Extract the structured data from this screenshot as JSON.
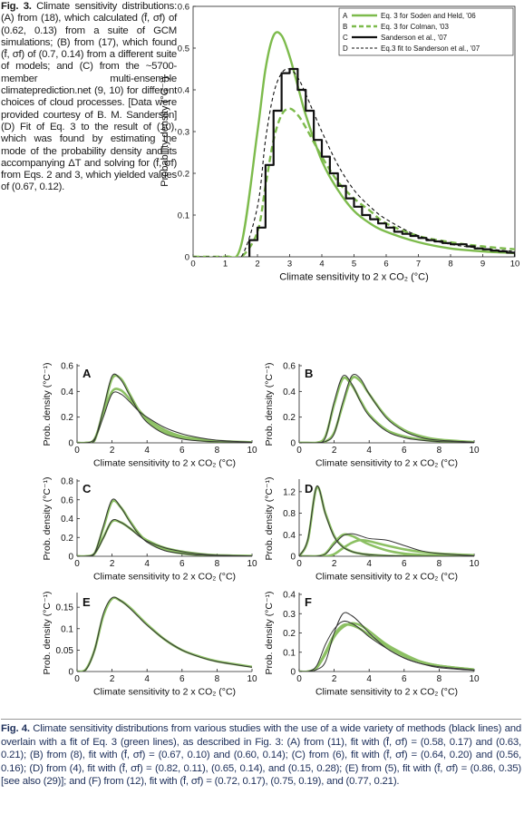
{
  "figure3_caption": {
    "label": "Fig. 3.",
    "text": "Climate sensitivity distributions: (A) from (18), which calculated (f̄, σf) of (0.62, 0.13) from a suite of GCM simulations; (B) from (17), which found (f̄, σf) of (0.7, 0.14) from a different suite of models; and (C) from the ~5700-member multi-ensemble climateprediction.net (9, 10) for different choices of cloud processes. [Data were provided courtesy of B. M. Sanderson] (D) Fit of Eq. 3 to the result of (10), which was found by estimating the mode of the probability density and its accompanying ΔT and solving for (f̄, σf) from Eqs. 2 and 3, which yielded values of (0.67, 0.12)."
  },
  "figure4_caption": {
    "label": "Fig. 4.",
    "text": "Climate sensitivity distributions from various studies with the use of a wide variety of methods (black lines) and overlain with a fit of Eq. 3 (green lines), as described in Fig. 3: (A) from (11), fit with (f̄, σf) = (0.58, 0.17) and (0.63, 0.21); (B) from (8), fit with (f̄, σf) = (0.67, 0.10) and (0.60, 0.14); (C) from (6), fit with (f̄, σf) = (0.64, 0.20) and (0.56, 0.16); (D) from (4), fit with (f̄, σf) = (0.82, 0.11), (0.65, 0.14), and (0.15, 0.28); (E) from (5), fit with (f̄, σf) = (0.86, 0.35) [see also (29)]; and (F) from (12), fit with (f̄, σf) = (0.72, 0.17), (0.75, 0.19), and (0.77, 0.21)."
  },
  "chart_data": [
    {
      "type": "line",
      "xlabel": "Climate sensitivity to 2 x CO₂ (°C)",
      "ylabel": "Probability density (°C⁻¹)",
      "xlim": [
        0,
        10
      ],
      "ylim": [
        0,
        0.6
      ],
      "xticks": [
        0,
        1,
        2,
        3,
        4,
        5,
        6,
        7,
        8,
        9,
        10
      ],
      "yticks": [
        0,
        0.1,
        0.2,
        0.3,
        0.4,
        0.5,
        0.6
      ],
      "legend": "upper right",
      "box": true,
      "x": [
        0,
        1,
        1.5,
        2,
        2.25,
        2.5,
        2.75,
        3,
        3.25,
        3.5,
        4,
        4.5,
        5,
        5.5,
        6,
        7,
        8,
        9,
        10
      ],
      "series": [
        {
          "key": "A",
          "name": "Eq. 3 for Soden and Held, '06",
          "color": "#7dbb4c",
          "width": 2.4,
          "style": "solid",
          "values": [
            0,
            0,
            0.03,
            0.3,
            0.45,
            0.53,
            0.53,
            0.48,
            0.41,
            0.34,
            0.23,
            0.16,
            0.11,
            0.08,
            0.06,
            0.035,
            0.02,
            0.013,
            0.009
          ]
        },
        {
          "key": "B",
          "name": "Eq. 3 for Colman, '03",
          "color": "#7dbb4c",
          "width": 2.4,
          "style": "dashed",
          "values": [
            0,
            0,
            0,
            0.06,
            0.17,
            0.28,
            0.34,
            0.355,
            0.34,
            0.31,
            0.24,
            0.18,
            0.14,
            0.11,
            0.08,
            0.05,
            0.035,
            0.025,
            0.018
          ]
        },
        {
          "key": "C",
          "name": "Sanderson et al., '07",
          "color": "#111111",
          "width": 2.2,
          "style": "solid",
          "step": true,
          "x": [
            1.75,
            2,
            2.25,
            2.5,
            2.75,
            3,
            3.25,
            3.5,
            3.75,
            4,
            4.25,
            4.5,
            4.75,
            5,
            5.25,
            5.5,
            5.75,
            6,
            6.25,
            6.5,
            6.75,
            7,
            7.25,
            7.5,
            7.75,
            8,
            8.25,
            8.5,
            8.75,
            9,
            9.25,
            9.5,
            9.75
          ],
          "values": [
            0.04,
            0.07,
            0.22,
            0.35,
            0.44,
            0.45,
            0.4,
            0.35,
            0.28,
            0.24,
            0.2,
            0.17,
            0.14,
            0.12,
            0.1,
            0.09,
            0.08,
            0.07,
            0.06,
            0.055,
            0.05,
            0.045,
            0.04,
            0.037,
            0.033,
            0.03,
            0.03,
            0.025,
            0.02,
            0.018,
            0.015,
            0.013,
            0.01
          ]
        },
        {
          "key": "D",
          "name": "Eq.3 fit to Sanderson et al., '07",
          "color": "#111111",
          "width": 1.1,
          "style": "dashed",
          "values": [
            0,
            0,
            0,
            0.12,
            0.28,
            0.39,
            0.44,
            0.45,
            0.43,
            0.39,
            0.3,
            0.22,
            0.16,
            0.12,
            0.09,
            0.05,
            0.03,
            0.02,
            0.013
          ]
        }
      ]
    },
    {
      "type": "line",
      "panel": "A",
      "xlabel": "Climate sensitivity to 2 x CO₂ (°C)",
      "ylabel": "Prob. density (°C⁻¹)",
      "xlim": [
        0,
        10
      ],
      "ylim": [
        0,
        0.6
      ],
      "xticks": [
        0,
        2,
        4,
        6,
        8,
        10
      ],
      "yticks": [
        0,
        0.2,
        0.4,
        0.6
      ],
      "x": [
        0,
        0.5,
        1,
        1.5,
        2,
        2.5,
        3,
        3.5,
        4,
        5,
        6,
        7,
        8,
        10
      ],
      "series": [
        {
          "color": "#8cc063",
          "width": 2.6,
          "values": [
            0,
            0,
            0.02,
            0.25,
            0.5,
            0.5,
            0.38,
            0.26,
            0.17,
            0.08,
            0.04,
            0.02,
            0.01,
            0.003
          ]
        },
        {
          "color": "#8cc063",
          "width": 2.6,
          "values": [
            0,
            0,
            0.03,
            0.22,
            0.4,
            0.41,
            0.34,
            0.26,
            0.19,
            0.1,
            0.05,
            0.03,
            0.015,
            0.005
          ]
        },
        {
          "color": "#333333",
          "width": 1,
          "values": [
            0,
            0,
            0.02,
            0.26,
            0.52,
            0.49,
            0.37,
            0.25,
            0.16,
            0.07,
            0.03,
            0.015,
            0.008,
            0.002
          ]
        },
        {
          "color": "#333333",
          "width": 1,
          "values": [
            0,
            0,
            0.03,
            0.2,
            0.38,
            0.38,
            0.32,
            0.25,
            0.2,
            0.12,
            0.07,
            0.04,
            0.02,
            0.005
          ]
        }
      ]
    },
    {
      "type": "line",
      "panel": "B",
      "xlabel": "Climate sensitivity to 2 x CO₂ (°C)",
      "ylabel": "Prob. density (°C⁻¹)",
      "xlim": [
        0,
        10
      ],
      "ylim": [
        0,
        0.6
      ],
      "xticks": [
        0,
        2,
        4,
        6,
        8,
        10
      ],
      "yticks": [
        0,
        0.2,
        0.4,
        0.6
      ],
      "x": [
        0,
        0.5,
        1,
        1.5,
        2,
        2.5,
        3,
        3.5,
        4,
        5,
        6,
        7,
        8,
        10
      ],
      "series": [
        {
          "color": "#8cc063",
          "width": 2.6,
          "values": [
            0,
            0,
            0,
            0.05,
            0.3,
            0.5,
            0.45,
            0.33,
            0.22,
            0.1,
            0.05,
            0.025,
            0.012,
            0.003
          ]
        },
        {
          "color": "#8cc063",
          "width": 2.6,
          "values": [
            0,
            0,
            0,
            0.01,
            0.08,
            0.3,
            0.5,
            0.48,
            0.38,
            0.2,
            0.1,
            0.05,
            0.025,
            0.006
          ]
        },
        {
          "color": "#333333",
          "width": 1,
          "values": [
            0,
            0,
            0,
            0.04,
            0.32,
            0.52,
            0.46,
            0.32,
            0.21,
            0.09,
            0.04,
            0.02,
            0.01,
            0.002
          ]
        },
        {
          "color": "#333333",
          "width": 1,
          "values": [
            0,
            0,
            0,
            0.01,
            0.07,
            0.32,
            0.52,
            0.5,
            0.38,
            0.19,
            0.09,
            0.04,
            0.02,
            0.005
          ]
        }
      ]
    },
    {
      "type": "line",
      "panel": "C",
      "xlabel": "Climate sensitivity to 2 x CO₂ (°C)",
      "ylabel": "Prob. density (°C⁻¹)",
      "xlim": [
        0,
        10
      ],
      "ylim": [
        0,
        0.8
      ],
      "xticks": [
        0,
        2,
        4,
        6,
        8,
        10
      ],
      "yticks": [
        0,
        0.2,
        0.4,
        0.6,
        0.8
      ],
      "x": [
        0,
        0.5,
        1,
        1.5,
        2,
        2.5,
        3,
        3.5,
        4,
        5,
        6,
        7,
        8,
        10
      ],
      "series": [
        {
          "color": "#8cc063",
          "width": 2.6,
          "values": [
            0,
            0,
            0.03,
            0.3,
            0.58,
            0.52,
            0.38,
            0.25,
            0.16,
            0.07,
            0.03,
            0.015,
            0.007,
            0.002
          ]
        },
        {
          "color": "#8cc063",
          "width": 2.6,
          "values": [
            0,
            0,
            0.03,
            0.2,
            0.37,
            0.36,
            0.3,
            0.23,
            0.17,
            0.09,
            0.05,
            0.025,
            0.012,
            0.004
          ]
        },
        {
          "color": "#333333",
          "width": 1,
          "values": [
            0,
            0,
            0.03,
            0.32,
            0.6,
            0.52,
            0.37,
            0.24,
            0.15,
            0.06,
            0.03,
            0.012,
            0.006,
            0.001
          ]
        },
        {
          "color": "#333333",
          "width": 1,
          "values": [
            0,
            0,
            0.03,
            0.19,
            0.38,
            0.36,
            0.3,
            0.22,
            0.16,
            0.09,
            0.05,
            0.025,
            0.012,
            0.004
          ]
        }
      ]
    },
    {
      "type": "line",
      "panel": "D",
      "xlabel": "Climate sensitivity to 2 x CO₂ (°C)",
      "ylabel": "Prob. density (°C⁻¹)",
      "xlim": [
        0,
        10
      ],
      "ylim": [
        0,
        1.4
      ],
      "xticks": [
        0,
        2,
        4,
        6,
        8,
        10
      ],
      "yticks": [
        0,
        0.4,
        0.8,
        1.2
      ],
      "x": [
        0,
        0.5,
        1,
        1.5,
        2,
        2.5,
        3,
        3.5,
        4,
        5,
        6,
        7,
        8,
        10
      ],
      "series": [
        {
          "color": "#8cc063",
          "width": 2.6,
          "values": [
            0,
            0.3,
            1.28,
            0.8,
            0.38,
            0.18,
            0.09,
            0.05,
            0.03,
            0.01,
            0.005,
            0.002,
            0.001,
            0
          ]
        },
        {
          "color": "#8cc063",
          "width": 2.6,
          "values": [
            0,
            0,
            0,
            0.05,
            0.25,
            0.4,
            0.38,
            0.3,
            0.22,
            0.11,
            0.05,
            0.025,
            0.012,
            0.003
          ]
        },
        {
          "color": "#8cc063",
          "width": 2.6,
          "values": [
            0,
            0,
            0,
            0,
            0.04,
            0.15,
            0.25,
            0.3,
            0.28,
            0.2,
            0.13,
            0.08,
            0.05,
            0.02
          ]
        },
        {
          "color": "#333333",
          "width": 1,
          "values": [
            0,
            0.32,
            1.3,
            0.78,
            0.36,
            0.17,
            0.09,
            0.05,
            0.03,
            0.01,
            0.005,
            0.002,
            0.001,
            0
          ]
        },
        {
          "color": "#333333",
          "width": 1,
          "values": [
            0,
            0,
            0,
            0.04,
            0.22,
            0.38,
            0.42,
            0.38,
            0.33,
            0.3,
            0.2,
            0.1,
            0.05,
            0.01
          ]
        }
      ]
    },
    {
      "type": "line",
      "panel": "E",
      "xlabel": "Climate sensitivity to 2 x CO₂ (°C)",
      "ylabel": "Prob. density (°C⁻¹)",
      "xlim": [
        0,
        10
      ],
      "ylim": [
        0,
        0.18
      ],
      "xticks": [
        0,
        2,
        4,
        6,
        8,
        10
      ],
      "yticks": [
        0,
        0.05,
        0.1,
        0.15
      ],
      "x": [
        0,
        0.5,
        1,
        1.5,
        2,
        2.5,
        3,
        3.5,
        4,
        5,
        6,
        7,
        8,
        10
      ],
      "series": [
        {
          "color": "#8cc063",
          "width": 2.6,
          "values": [
            0,
            0.005,
            0.05,
            0.13,
            0.17,
            0.165,
            0.15,
            0.13,
            0.11,
            0.075,
            0.05,
            0.035,
            0.024,
            0.011
          ]
        },
        {
          "color": "#333333",
          "width": 1,
          "values": [
            0,
            0.004,
            0.05,
            0.135,
            0.172,
            0.165,
            0.148,
            0.128,
            0.108,
            0.075,
            0.05,
            0.034,
            0.023,
            0.01
          ]
        }
      ]
    },
    {
      "type": "line",
      "panel": "F",
      "xlabel": "Climate sensitivity to 2 x CO₂ (°C)",
      "ylabel": "Prob. density (°C⁻¹)",
      "xlim": [
        0,
        10
      ],
      "ylim": [
        0,
        0.4
      ],
      "xticks": [
        0,
        2,
        4,
        6,
        8,
        10
      ],
      "yticks": [
        0,
        0.1,
        0.2,
        0.3,
        0.4
      ],
      "x": [
        0,
        0.5,
        1,
        1.5,
        2,
        2.5,
        3,
        3.5,
        4,
        5,
        6,
        7,
        8,
        10
      ],
      "series": [
        {
          "color": "#8cc063",
          "width": 2.6,
          "values": [
            0,
            0,
            0.02,
            0.1,
            0.19,
            0.24,
            0.24,
            0.22,
            0.19,
            0.13,
            0.08,
            0.05,
            0.03,
            0.01
          ]
        },
        {
          "color": "#8cc063",
          "width": 2.6,
          "values": [
            0,
            0,
            0.02,
            0.09,
            0.18,
            0.23,
            0.25,
            0.24,
            0.21,
            0.14,
            0.09,
            0.05,
            0.03,
            0.01
          ]
        },
        {
          "color": "#333333",
          "width": 1,
          "values": [
            0,
            0,
            0.01,
            0.05,
            0.2,
            0.3,
            0.29,
            0.25,
            0.2,
            0.12,
            0.07,
            0.04,
            0.02,
            0.006
          ]
        },
        {
          "color": "#333333",
          "width": 1,
          "values": [
            0,
            0,
            0.03,
            0.14,
            0.22,
            0.26,
            0.25,
            0.22,
            0.18,
            0.12,
            0.07,
            0.04,
            0.025,
            0.008
          ]
        }
      ]
    }
  ]
}
